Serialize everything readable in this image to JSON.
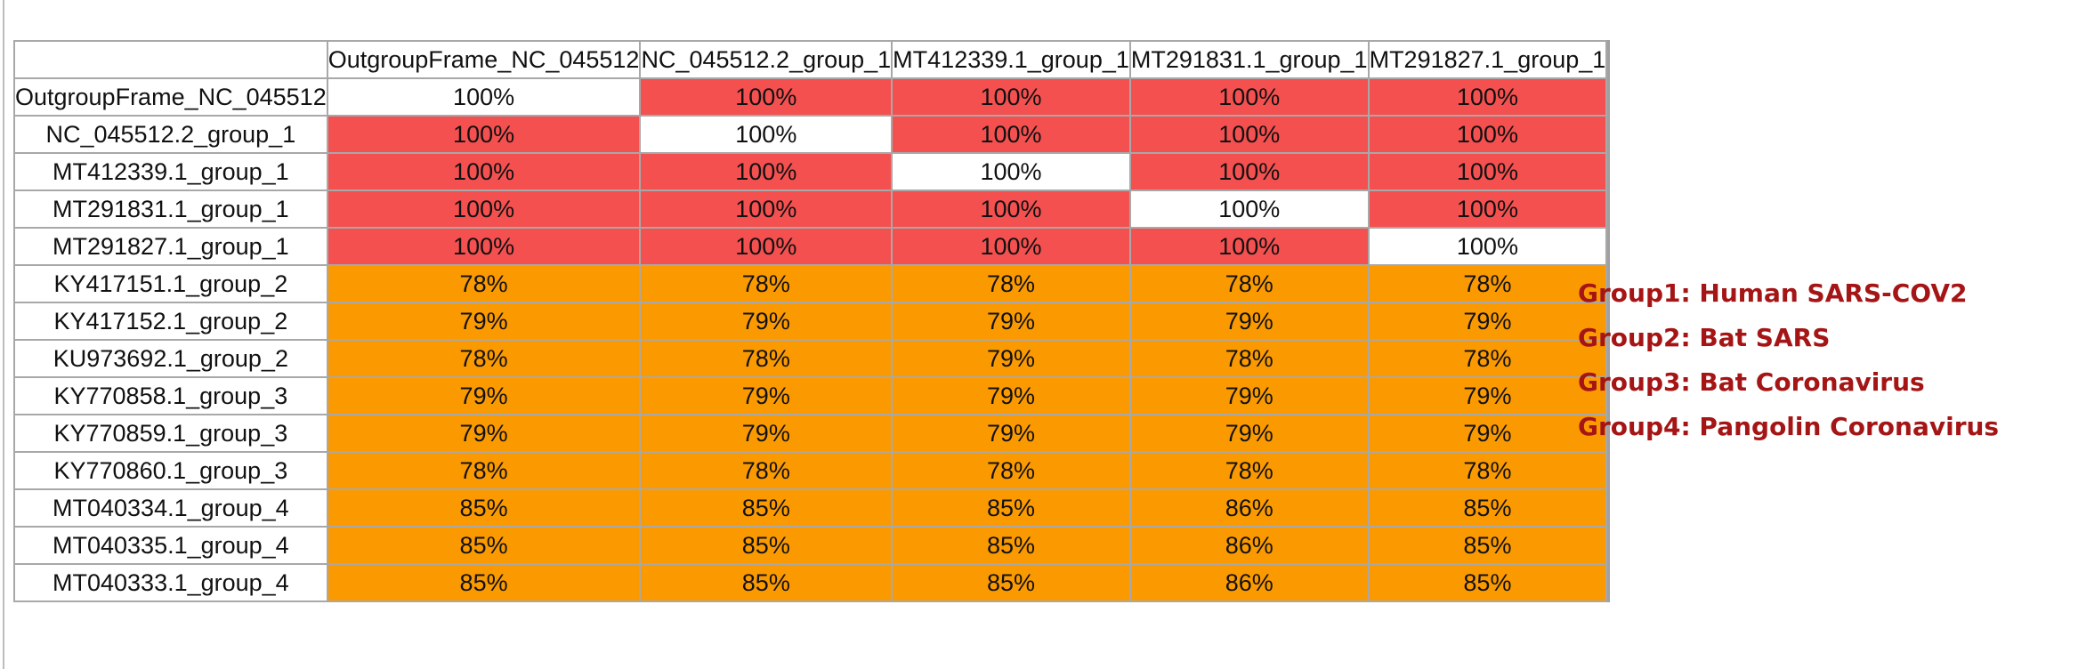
{
  "columns": [
    "OutgroupFrame_NC_045512",
    "NC_045512.2_group_1",
    "MT412339.1_group_1",
    "MT291831.1_group_1",
    "MT291827.1_group_1"
  ],
  "rows": [
    {
      "label": "OutgroupFrame_NC_045512",
      "cells": [
        "100%",
        "100%",
        "100%",
        "100%",
        "100%"
      ],
      "kinds": [
        "self",
        "red",
        "red",
        "red",
        "red"
      ]
    },
    {
      "label": "NC_045512.2_group_1",
      "cells": [
        "100%",
        "100%",
        "100%",
        "100%",
        "100%"
      ],
      "kinds": [
        "red",
        "self",
        "red",
        "red",
        "red"
      ]
    },
    {
      "label": "MT412339.1_group_1",
      "cells": [
        "100%",
        "100%",
        "100%",
        "100%",
        "100%"
      ],
      "kinds": [
        "red",
        "red",
        "self",
        "red",
        "red"
      ]
    },
    {
      "label": "MT291831.1_group_1",
      "cells": [
        "100%",
        "100%",
        "100%",
        "100%",
        "100%"
      ],
      "kinds": [
        "red",
        "red",
        "red",
        "self",
        "red"
      ]
    },
    {
      "label": "MT291827.1_group_1",
      "cells": [
        "100%",
        "100%",
        "100%",
        "100%",
        "100%"
      ],
      "kinds": [
        "red",
        "red",
        "red",
        "red",
        "self"
      ]
    },
    {
      "label": "KY417151.1_group_2",
      "cells": [
        "78%",
        "78%",
        "78%",
        "78%",
        "78%"
      ],
      "kinds": [
        "orange",
        "orange",
        "orange",
        "orange",
        "orange"
      ]
    },
    {
      "label": "KY417152.1_group_2",
      "cells": [
        "79%",
        "79%",
        "79%",
        "79%",
        "79%"
      ],
      "kinds": [
        "orange",
        "orange",
        "orange",
        "orange",
        "orange"
      ]
    },
    {
      "label": "KU973692.1_group_2",
      "cells": [
        "78%",
        "78%",
        "79%",
        "78%",
        "78%"
      ],
      "kinds": [
        "orange",
        "orange",
        "orange",
        "orange",
        "orange"
      ]
    },
    {
      "label": "KY770858.1_group_3",
      "cells": [
        "79%",
        "79%",
        "79%",
        "79%",
        "79%"
      ],
      "kinds": [
        "orange",
        "orange",
        "orange",
        "orange",
        "orange"
      ]
    },
    {
      "label": "KY770859.1_group_3",
      "cells": [
        "79%",
        "79%",
        "79%",
        "79%",
        "79%"
      ],
      "kinds": [
        "orange",
        "orange",
        "orange",
        "orange",
        "orange"
      ]
    },
    {
      "label": "KY770860.1_group_3",
      "cells": [
        "78%",
        "78%",
        "78%",
        "78%",
        "78%"
      ],
      "kinds": [
        "orange",
        "orange",
        "orange",
        "orange",
        "orange"
      ]
    },
    {
      "label": "MT040334.1_group_4",
      "cells": [
        "85%",
        "85%",
        "85%",
        "86%",
        "85%"
      ],
      "kinds": [
        "orange",
        "orange",
        "orange",
        "orange",
        "orange"
      ]
    },
    {
      "label": "MT040335.1_group_4",
      "cells": [
        "85%",
        "85%",
        "85%",
        "86%",
        "85%"
      ],
      "kinds": [
        "orange",
        "orange",
        "orange",
        "orange",
        "orange"
      ]
    },
    {
      "label": "MT040333.1_group_4",
      "cells": [
        "85%",
        "85%",
        "85%",
        "86%",
        "85%"
      ],
      "kinds": [
        "orange",
        "orange",
        "orange",
        "orange",
        "orange"
      ]
    }
  ],
  "legend": [
    "Group1: Human SARS-COV2",
    "Group2: Bat SARS",
    "Group3: Bat Coronavirus",
    "Group4: Pangolin Coronavirus"
  ],
  "colors": {
    "identical_group": "#f45050",
    "cross_group": "#fb9a00",
    "self": "#ffffff",
    "legend_text": "#a51515"
  }
}
